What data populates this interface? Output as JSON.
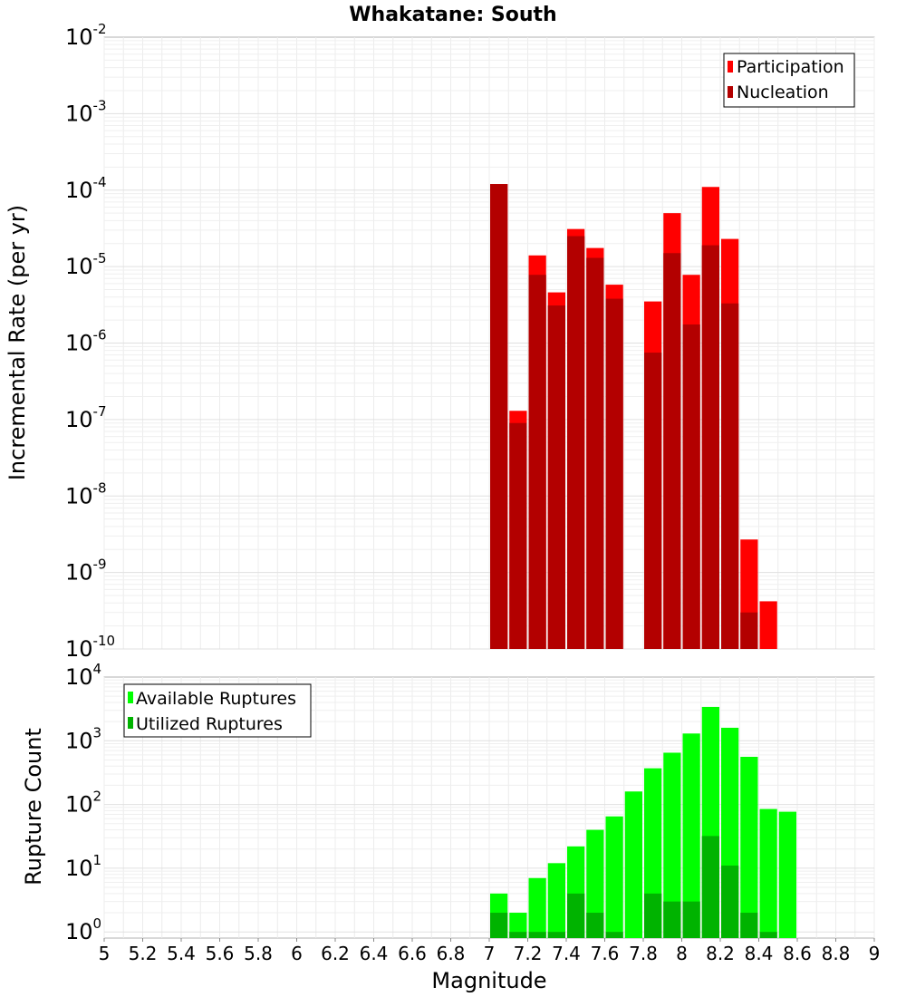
{
  "chart_data": [
    {
      "type": "bar",
      "title": "Whakatane: South",
      "ylabel": "Incremental Rate (per yr)",
      "xlabel": "",
      "xlim": [
        5,
        9
      ],
      "ylim": [
        1e-10,
        0.01
      ],
      "yscale": "log",
      "grid": true,
      "legend_position": "top-right",
      "y_ticks": [
        {
          "base": "10",
          "exp": "-10"
        },
        {
          "base": "10",
          "exp": "-9"
        },
        {
          "base": "10",
          "exp": "-8"
        },
        {
          "base": "10",
          "exp": "-7"
        },
        {
          "base": "10",
          "exp": "-6"
        },
        {
          "base": "10",
          "exp": "-5"
        },
        {
          "base": "10",
          "exp": "-4"
        },
        {
          "base": "10",
          "exp": "-3"
        },
        {
          "base": "10",
          "exp": "-2"
        }
      ],
      "series": [
        {
          "name": "Participation",
          "color": "#ff0000",
          "x": [
            7.05,
            7.15,
            7.25,
            7.35,
            7.45,
            7.55,
            7.65,
            7.85,
            7.95,
            8.05,
            8.15,
            8.25,
            8.35,
            8.45
          ],
          "values": [
            0.00012,
            1.3e-07,
            1.4e-05,
            4.6e-06,
            3.1e-05,
            1.75e-05,
            5.8e-06,
            3.5e-06,
            5e-05,
            7.8e-06,
            0.00011,
            2.3e-05,
            2.7e-09,
            4.2e-10
          ]
        },
        {
          "name": "Nucleation",
          "color": "#b30000",
          "x": [
            7.05,
            7.15,
            7.25,
            7.35,
            7.45,
            7.55,
            7.65,
            7.85,
            7.95,
            8.05,
            8.15,
            8.25,
            8.35
          ],
          "values": [
            0.00012,
            9e-08,
            7.8e-06,
            3.1e-06,
            2.5e-05,
            1.3e-05,
            3.8e-06,
            7.5e-07,
            1.5e-05,
            1.75e-06,
            1.9e-05,
            3.3e-06,
            3e-10
          ]
        }
      ]
    },
    {
      "type": "bar",
      "title": "",
      "ylabel": "Rupture Count",
      "xlabel": "Magnitude",
      "xlim": [
        5,
        9
      ],
      "ylim": [
        0.8,
        10000
      ],
      "yscale": "log",
      "grid": true,
      "legend_position": "top-left",
      "y_ticks": [
        {
          "base": "10",
          "exp": "0",
          "value": 1
        },
        {
          "base": "10",
          "exp": "1",
          "value": 10
        },
        {
          "base": "10",
          "exp": "2",
          "value": 100
        },
        {
          "base": "10",
          "exp": "3",
          "value": 1000
        },
        {
          "base": "10",
          "exp": "4",
          "value": 10000
        }
      ],
      "x_ticks": [
        "5",
        "5.2",
        "5.4",
        "5.6",
        "5.8",
        "6",
        "6.2",
        "6.4",
        "6.6",
        "6.8",
        "7",
        "7.2",
        "7.4",
        "7.6",
        "7.8",
        "8",
        "8.2",
        "8.4",
        "8.6",
        "8.8",
        "9"
      ],
      "series": [
        {
          "name": "Available Ruptures",
          "color": "#00ff00",
          "x": [
            7.05,
            7.15,
            7.25,
            7.35,
            7.45,
            7.55,
            7.65,
            7.75,
            7.85,
            7.95,
            8.05,
            8.15,
            8.25,
            8.35,
            8.45,
            8.55
          ],
          "values": [
            4,
            2,
            7,
            12,
            22,
            40,
            65,
            160,
            370,
            650,
            1300,
            3400,
            1600,
            560,
            85,
            77
          ]
        },
        {
          "name": "Utilized Ruptures",
          "color": "#00b300",
          "x": [
            7.05,
            7.15,
            7.25,
            7.35,
            7.45,
            7.55,
            7.65,
            7.85,
            7.95,
            8.05,
            8.15,
            8.25,
            8.35,
            8.45
          ],
          "values": [
            2,
            1,
            1,
            1,
            4,
            2,
            1,
            4,
            3,
            3,
            32,
            11,
            2,
            1
          ]
        }
      ]
    }
  ]
}
